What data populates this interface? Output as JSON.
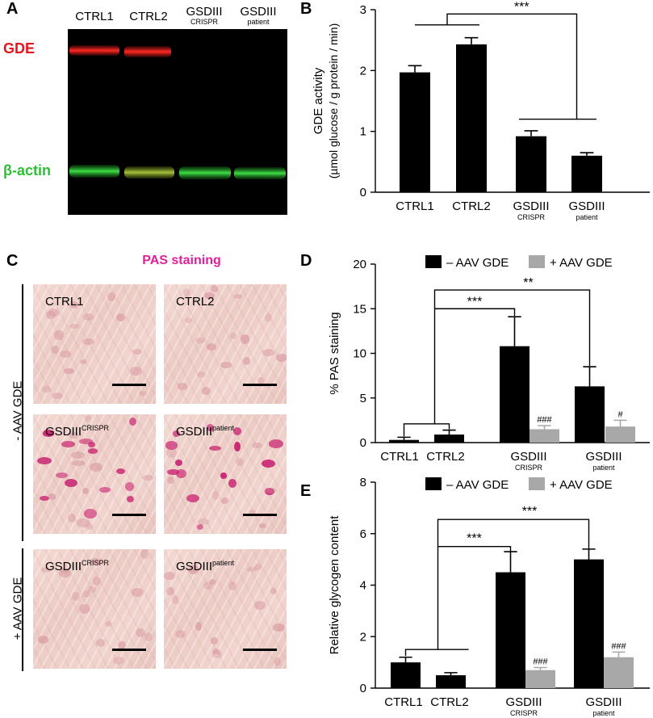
{
  "panels": {
    "A": {
      "letter": "A",
      "lanes": [
        {
          "label": "CTRL1",
          "sub": ""
        },
        {
          "label": "CTRL2",
          "sub": ""
        },
        {
          "label": "GSDIII",
          "sub": "CRISPR"
        },
        {
          "label": "GSDIII",
          "sub": "patient"
        }
      ],
      "band_labels": {
        "gde": "GDE",
        "actin": "β-actin"
      },
      "colors": {
        "gde": "#e8161a",
        "actin": "#2dbf33",
        "background": "#000000"
      }
    },
    "B": {
      "letter": "B",
      "significance": "***"
    },
    "C": {
      "letter": "C",
      "title": "PAS staining",
      "title_color": "#e0209a",
      "row_labels": [
        "- AAV GDE",
        "+ AAV GDE"
      ],
      "tiles": [
        {
          "label": "CTRL1",
          "sup": ""
        },
        {
          "label": "CTRL2",
          "sup": ""
        },
        {
          "label": "GSDIII",
          "sup": "CRISPR"
        },
        {
          "label": "GSDIII",
          "sup": "patient"
        },
        {
          "label": "GSDIII",
          "sup": "CRISPR"
        },
        {
          "label": "GSDIII",
          "sup": "patient"
        }
      ]
    },
    "D": {
      "letter": "D"
    },
    "E": {
      "letter": "E"
    }
  },
  "chart_data": [
    {
      "id": "B",
      "type": "bar",
      "categories": [
        {
          "label": "CTRL1",
          "sub": ""
        },
        {
          "label": "CTRL2",
          "sub": ""
        },
        {
          "label": "GSDIII",
          "sub": "CRISPR"
        },
        {
          "label": "GSDIII",
          "sub": "patient"
        }
      ],
      "series": [
        {
          "name": "",
          "color": "#000000",
          "values": [
            1.97,
            2.43,
            0.92,
            0.6
          ],
          "errors": [
            0.11,
            0.11,
            0.09,
            0.05
          ]
        }
      ],
      "ylabel": "GDE activity",
      "ylabel2": "(µmol glucose / g protein / min)",
      "ylim": [
        0,
        3
      ],
      "yticks": [
        0,
        1,
        2,
        3
      ],
      "annotations": [
        {
          "text": "***",
          "type": "group-bracket"
        }
      ]
    },
    {
      "id": "D",
      "type": "bar",
      "categories": [
        {
          "label": "CTRL1",
          "sub": ""
        },
        {
          "label": "CTRL2",
          "sub": ""
        },
        {
          "label": "GSDIII",
          "sub": "CRISPR"
        },
        {
          "label": "GSDIII",
          "sub": "patient"
        }
      ],
      "series": [
        {
          "name": "– AAV GDE",
          "color": "#000000",
          "values": [
            0.3,
            0.9,
            10.8,
            6.3
          ],
          "errors": [
            0.3,
            0.5,
            3.3,
            2.2
          ]
        },
        {
          "name": "+ AAV GDE",
          "color": "#a8a8a8",
          "values": [
            null,
            null,
            1.5,
            1.8
          ],
          "errors": [
            null,
            null,
            0.4,
            0.7
          ],
          "marks": [
            "",
            "",
            "###",
            "#"
          ]
        }
      ],
      "ylabel": "% PAS staining",
      "ylim": [
        0,
        20
      ],
      "yticks": [
        0,
        5,
        10,
        15,
        20
      ],
      "legend": "top",
      "annotations": [
        {
          "text": "***"
        },
        {
          "text": "**"
        }
      ]
    },
    {
      "id": "E",
      "type": "bar",
      "categories": [
        {
          "label": "CTRL1",
          "sub": ""
        },
        {
          "label": "CTRL2",
          "sub": ""
        },
        {
          "label": "GSDIII",
          "sub": "CRISPR"
        },
        {
          "label": "GSDIII",
          "sub": "patient"
        }
      ],
      "series": [
        {
          "name": "– AAV GDE",
          "color": "#000000",
          "values": [
            1.0,
            0.5,
            4.5,
            5.0
          ],
          "errors": [
            0.2,
            0.1,
            0.8,
            0.4
          ]
        },
        {
          "name": "+ AAV GDE",
          "color": "#a8a8a8",
          "values": [
            null,
            null,
            0.7,
            1.2
          ],
          "errors": [
            null,
            null,
            0.1,
            0.2
          ],
          "marks": [
            "",
            "",
            "###",
            "###"
          ]
        }
      ],
      "ylabel": "Relative glycogen content",
      "ylim": [
        0,
        8
      ],
      "yticks": [
        0,
        2,
        4,
        6,
        8
      ],
      "legend": "top",
      "annotations": [
        {
          "text": "***"
        },
        {
          "text": "***"
        }
      ]
    }
  ]
}
